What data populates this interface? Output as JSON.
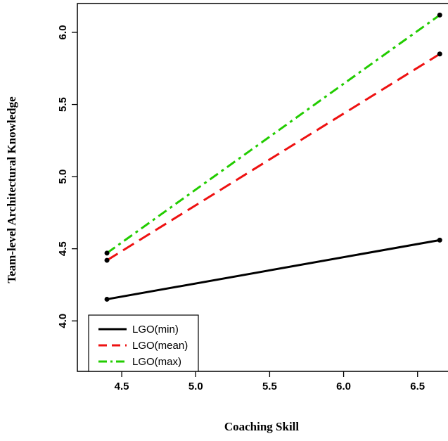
{
  "chart_data": {
    "type": "line",
    "xlabel": "Coaching Skill",
    "ylabel": "Team-level Architectural Knowledge",
    "xlim": [
      4.2,
      6.72
    ],
    "ylim": [
      3.65,
      6.2
    ],
    "xticks": [
      {
        "value": 4.5,
        "label": "4.5"
      },
      {
        "value": 5.0,
        "label": "5.0"
      },
      {
        "value": 5.5,
        "label": "5.5"
      },
      {
        "value": 6.0,
        "label": "6.0"
      },
      {
        "value": 6.5,
        "label": "6.5"
      }
    ],
    "yticks": [
      {
        "value": 4.0,
        "label": "4.0"
      },
      {
        "value": 4.5,
        "label": "4.5"
      },
      {
        "value": 5.0,
        "label": "5.0"
      },
      {
        "value": 5.5,
        "label": "5.5"
      },
      {
        "value": 6.0,
        "label": "6.0"
      }
    ],
    "x": [
      4.4,
      6.65
    ],
    "series": [
      {
        "name": "LGO(min)",
        "values": [
          4.15,
          4.56
        ],
        "color": "#000000",
        "dash": "solid"
      },
      {
        "name": "LGO(mean)",
        "values": [
          4.42,
          5.85
        ],
        "color": "#ee1111",
        "dash": "dashed"
      },
      {
        "name": "LGO(max)",
        "values": [
          4.47,
          6.12
        ],
        "color": "#22cc00",
        "dash": "dotdash"
      }
    ],
    "legend_position": "bottom-left",
    "grid": false
  }
}
